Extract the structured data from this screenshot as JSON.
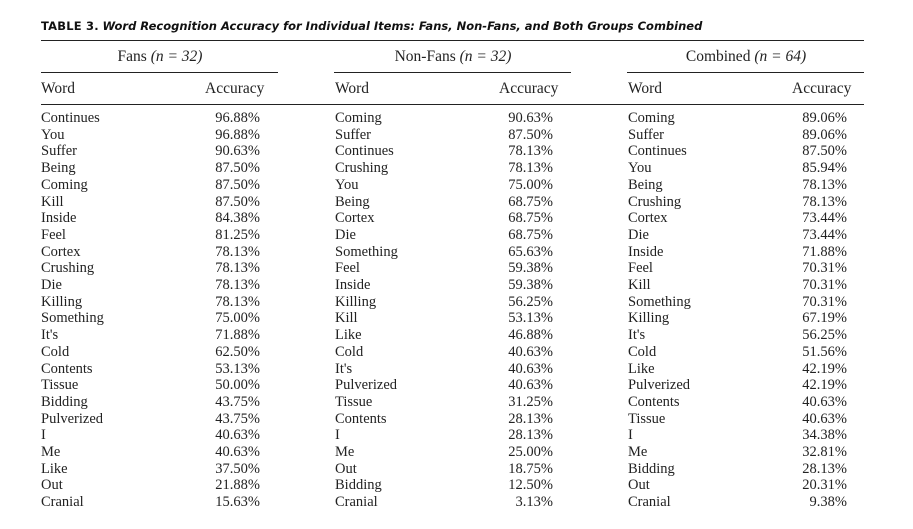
{
  "table": {
    "label": "TABLE 3.",
    "title": "Word Recognition Accuracy for Individual Items: Fans, Non-Fans, and Both Groups Combined",
    "groups": [
      {
        "name": "Fans",
        "n_expr": "(n = 32)"
      },
      {
        "name": "Non-Fans",
        "n_expr": "(n = 32)"
      },
      {
        "name": "Combined",
        "n_expr": "(n = 64)"
      }
    ],
    "column_headers": {
      "word": "Word",
      "accuracy": "Accuracy"
    },
    "fans": {
      "words": [
        "Continues",
        "You",
        "Suffer",
        "Being",
        "Coming",
        "Kill",
        "Inside",
        "Feel",
        "Cortex",
        "Crushing",
        "Die",
        "Killing",
        "Something",
        "It's",
        "Cold",
        "Contents",
        "Tissue",
        "Bidding",
        "Pulverized",
        "I",
        "Me",
        "Like",
        "Out",
        "Cranial"
      ],
      "accuracy": [
        "96.88%",
        "96.88%",
        "90.63%",
        "87.50%",
        "87.50%",
        "87.50%",
        "84.38%",
        "81.25%",
        "78.13%",
        "78.13%",
        "78.13%",
        "78.13%",
        "75.00%",
        "71.88%",
        "62.50%",
        "53.13%",
        "50.00%",
        "43.75%",
        "43.75%",
        "40.63%",
        "40.63%",
        "37.50%",
        "21.88%",
        "15.63%"
      ]
    },
    "nonfans": {
      "words": [
        "Coming",
        "Suffer",
        "Continues",
        "Crushing",
        "You",
        "Being",
        "Cortex",
        "Die",
        "Something",
        "Feel",
        "Inside",
        "Killing",
        "Kill",
        "Like",
        "Cold",
        "It's",
        "Pulverized",
        "Tissue",
        "Contents",
        "I",
        "Me",
        "Out",
        "Bidding",
        "Cranial"
      ],
      "accuracy": [
        "90.63%",
        "87.50%",
        "78.13%",
        "78.13%",
        "75.00%",
        "68.75%",
        "68.75%",
        "68.75%",
        "65.63%",
        "59.38%",
        "59.38%",
        "56.25%",
        "53.13%",
        "46.88%",
        "40.63%",
        "40.63%",
        "40.63%",
        "31.25%",
        "28.13%",
        "28.13%",
        "25.00%",
        "18.75%",
        "12.50%",
        "3.13%"
      ]
    },
    "combined": {
      "words": [
        "Coming",
        "Suffer",
        "Continues",
        "You",
        "Being",
        "Crushing",
        "Cortex",
        "Die",
        "Inside",
        "Feel",
        "Kill",
        "Something",
        "Killing",
        "It's",
        "Cold",
        "Like",
        "Pulverized",
        "Contents",
        "Tissue",
        "I",
        "Me",
        "Bidding",
        "Out",
        "Cranial"
      ],
      "accuracy": [
        "89.06%",
        "89.06%",
        "87.50%",
        "85.94%",
        "78.13%",
        "78.13%",
        "73.44%",
        "73.44%",
        "71.88%",
        "70.31%",
        "70.31%",
        "70.31%",
        "67.19%",
        "56.25%",
        "51.56%",
        "42.19%",
        "42.19%",
        "40.63%",
        "40.63%",
        "34.38%",
        "32.81%",
        "28.13%",
        "20.31%",
        "9.38%"
      ]
    }
  }
}
